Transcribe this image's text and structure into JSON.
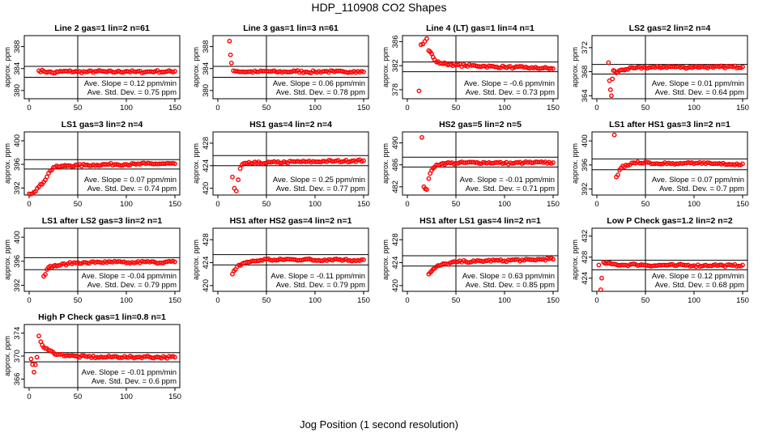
{
  "page": {
    "title": "HDP_110908  CO2 Shapes",
    "xlabel": "Jog Position (1 second resolution)"
  },
  "chart_data": [
    {
      "type": "scatter",
      "title": "Line 2 gas=1 lin=2 n=61",
      "ylabel": "approx. ppm",
      "xlim": [
        -5,
        155
      ],
      "ylim": [
        378.5,
        390
      ],
      "xticks": [
        0,
        50,
        100,
        150
      ],
      "yticks": [
        380,
        384,
        388
      ],
      "hlines": [
        384.4,
        382.4
      ],
      "vline": 50,
      "series": [
        {
          "name": "",
          "x": [
            10,
            15,
            20,
            25,
            30,
            40,
            50,
            60,
            70,
            80,
            90,
            100,
            110,
            120,
            130,
            140,
            150
          ],
          "y": [
            383.6,
            383.5,
            383.4,
            383.2,
            383.4,
            383.5,
            383.4,
            383.4,
            383.5,
            383.4,
            383.4,
            383.5,
            383.4,
            383.4,
            383.5,
            383.4,
            383.5
          ]
        }
      ],
      "annotations": [
        "Ave. Slope =  0.12  ppm/min",
        "Ave. Std. Dev. =  0.75  ppm"
      ]
    },
    {
      "type": "scatter",
      "title": "Line 3 gas=1 lin=3 n=61",
      "ylabel": "approx. ppm",
      "xlim": [
        -5,
        155
      ],
      "ylim": [
        378.5,
        390
      ],
      "xticks": [
        0,
        50,
        100,
        150
      ],
      "yticks": [
        380,
        384,
        388
      ],
      "hlines": [
        384.4,
        382.4
      ],
      "vline": 50,
      "series": [
        {
          "name": "",
          "x": [
            12,
            13,
            14,
            16,
            20,
            30,
            40,
            50,
            60,
            70,
            80,
            90,
            100,
            110,
            120,
            130,
            140,
            150
          ],
          "y": [
            389,
            386.5,
            385,
            383.6,
            383.5,
            383.4,
            383.4,
            383.5,
            383.4,
            383.4,
            383.5,
            383.4,
            383.4,
            383.5,
            383.4,
            383.4,
            383.5,
            383.4
          ]
        }
      ],
      "annotations": [
        "Ave. Slope =  0.06  ppm/min",
        "Ave. Std. Dev. =  0.78  ppm"
      ]
    },
    {
      "type": "scatter",
      "title": "Line 4 (LT) gas=1 lin=4 n=1",
      "ylabel": "approx. ppm",
      "xlim": [
        -5,
        155
      ],
      "ylim": [
        376.5,
        387
      ],
      "xticks": [
        0,
        50,
        100,
        150
      ],
      "yticks": [
        378,
        382,
        386
      ],
      "hlines": [
        382.6,
        381
      ],
      "vline": 50,
      "series": [
        {
          "name": "",
          "x": [
            12,
            14,
            16,
            20,
            22,
            25,
            28,
            30,
            35,
            40,
            45,
            50,
            60,
            70,
            80,
            90,
            100,
            110,
            120,
            130,
            140,
            150
          ],
          "y": [
            377.8,
            385.5,
            385.6,
            386.5,
            384.5,
            384,
            383,
            382.6,
            382.4,
            382.3,
            382.2,
            382.1,
            382.0,
            382.0,
            381.9,
            381.8,
            381.8,
            381.7,
            381.7,
            381.6,
            381.6,
            381.5
          ]
        }
      ],
      "annotations": [
        "Ave. Slope =  -0.6  ppm/min",
        "Ave. Std. Dev. =  0.73  ppm"
      ]
    },
    {
      "type": "scatter",
      "title": "LS2 gas=2 lin=2 n=4",
      "ylabel": "approx. ppm",
      "xlim": [
        -5,
        155
      ],
      "ylim": [
        363.5,
        374
      ],
      "xticks": [
        0,
        50,
        100,
        150
      ],
      "yticks": [
        364,
        368,
        372
      ],
      "hlines": [
        369.2,
        367.6
      ],
      "vline": 50,
      "series": [
        {
          "name": "",
          "x": [
            12,
            13,
            14,
            15,
            16,
            17,
            20,
            25,
            30,
            40,
            50,
            60,
            70,
            80,
            90,
            100,
            110,
            120,
            130,
            140,
            150
          ],
          "y": [
            369.5,
            366.5,
            365,
            364,
            366.8,
            368.2,
            367.8,
            368.3,
            368.4,
            368.6,
            368.7,
            368.7,
            368.8,
            368.8,
            368.7,
            368.8,
            368.8,
            368.7,
            368.8,
            368.8,
            368.8
          ]
        }
      ],
      "annotations": [
        "Ave. Slope =  0.01  ppm/min",
        "Ave. Std. Dev. =  0.64  ppm"
      ]
    },
    {
      "type": "scatter",
      "title": "LS1 gas=3 lin=2 n=4",
      "ylabel": "approx. ppm",
      "xlim": [
        -5,
        155
      ],
      "ylim": [
        390.8,
        401.5
      ],
      "xticks": [
        0,
        50,
        100,
        150
      ],
      "yticks": [
        392,
        396,
        400
      ],
      "hlines": [
        396.8,
        395.2
      ],
      "vline": 50,
      "series": [
        {
          "name": "",
          "x": [
            0,
            5,
            10,
            15,
            20,
            25,
            30,
            35,
            40,
            50,
            60,
            70,
            80,
            90,
            100,
            110,
            120,
            130,
            140,
            150
          ],
          "y": [
            391,
            391.3,
            392.2,
            393,
            394.5,
            395.5,
            395.6,
            395.7,
            395.8,
            395.8,
            395.9,
            395.9,
            396,
            396,
            396,
            396,
            396.1,
            396.1,
            396.1,
            396.1
          ]
        }
      ],
      "annotations": [
        "Ave. Slope =  0.07  ppm/min",
        "Ave. Std. Dev. =  0.74  ppm"
      ]
    },
    {
      "type": "scatter",
      "title": "HS1 gas=4 lin=2 n=4",
      "ylabel": "approx. ppm",
      "xlim": [
        -5,
        155
      ],
      "ylim": [
        418.8,
        430
      ],
      "xticks": [
        0,
        50,
        100,
        150
      ],
      "yticks": [
        420,
        424,
        428
      ],
      "hlines": [
        425.8,
        424
      ],
      "vline": 50,
      "series": [
        {
          "name": "",
          "x": [
            15,
            17,
            19,
            21,
            23,
            25,
            30,
            40,
            50,
            60,
            70,
            80,
            90,
            100,
            110,
            120,
            130,
            140,
            150
          ],
          "y": [
            422,
            420,
            419.5,
            421.5,
            423.5,
            424.2,
            424.4,
            424.5,
            424.5,
            424.6,
            424.6,
            424.7,
            424.7,
            424.7,
            424.8,
            424.8,
            424.8,
            424.9,
            424.9
          ]
        }
      ],
      "annotations": [
        "Ave. Slope =  0.25  ppm/min",
        "Ave. Std. Dev. =  0.77  ppm"
      ]
    },
    {
      "type": "scatter",
      "title": "HS2 gas=5 lin=2 n=5",
      "ylabel": "approx. ppm",
      "xlim": [
        -5,
        155
      ],
      "ylim": [
        480.5,
        492
      ],
      "xticks": [
        0,
        50,
        100,
        150
      ],
      "yticks": [
        482,
        486,
        490
      ],
      "hlines": [
        487.4,
        485.6
      ],
      "vline": 50,
      "series": [
        {
          "name": "",
          "x": [
            15,
            17,
            20,
            22,
            25,
            28,
            30,
            35,
            40,
            50,
            60,
            70,
            80,
            90,
            100,
            110,
            120,
            130,
            140,
            150
          ],
          "y": [
            491,
            482,
            481.5,
            483.5,
            485,
            485.6,
            486,
            486.2,
            486.3,
            486.3,
            486.4,
            486.4,
            486.4,
            486.4,
            486.3,
            486.3,
            486.4,
            486.4,
            486.4,
            486.4
          ]
        }
      ],
      "annotations": [
        "Ave. Slope =  -0.01  ppm/min",
        "Ave. Std. Dev. =  0.71  ppm"
      ]
    },
    {
      "type": "scatter",
      "title": "LS1 after HS1 gas=3 lin=2 n=1",
      "ylabel": "approx. ppm",
      "xlim": [
        -5,
        155
      ],
      "ylim": [
        391,
        401.5
      ],
      "xticks": [
        0,
        50,
        100,
        150
      ],
      "yticks": [
        392,
        396,
        400
      ],
      "hlines": [
        397,
        395.2
      ],
      "vline": 50,
      "series": [
        {
          "name": "",
          "x": [
            18,
            20,
            25,
            30,
            40,
            50,
            60,
            70,
            80,
            90,
            100,
            110,
            120,
            130,
            140,
            150
          ],
          "y": [
            401,
            394,
            395.5,
            396,
            396.3,
            396.5,
            396.2,
            396.4,
            396.1,
            396.3,
            396.2,
            396.4,
            396.2,
            396.3,
            396.1,
            396.2
          ]
        }
      ],
      "annotations": [
        "Ave. Slope =  0.07  ppm/min",
        "Ave. Std. Dev. =  0.7  ppm"
      ]
    },
    {
      "type": "scatter",
      "title": "LS1 after LS2 gas=3 lin=2 n=1",
      "ylabel": "approx. ppm",
      "xlim": [
        -5,
        155
      ],
      "ylim": [
        391,
        401.5
      ],
      "xticks": [
        0,
        50,
        100,
        150
      ],
      "yticks": [
        392,
        396,
        400
      ],
      "hlines": [
        396.6,
        394.6
      ],
      "vline": 50,
      "series": [
        {
          "name": "",
          "x": [
            15,
            20,
            25,
            30,
            40,
            50,
            60,
            70,
            80,
            90,
            100,
            110,
            120,
            130,
            140,
            150
          ],
          "y": [
            393.5,
            395,
            395.2,
            395.3,
            395.6,
            395.8,
            395.7,
            395.9,
            395.8,
            395.9,
            395.7,
            395.8,
            395.9,
            395.8,
            395.9,
            395.9
          ]
        }
      ],
      "annotations": [
        "Ave. Slope =  -0.04  ppm/min",
        "Ave. Std. Dev. =  0.79  ppm"
      ]
    },
    {
      "type": "scatter",
      "title": "HS1 after HS2 gas=4 lin=2 n=1",
      "ylabel": "approx. ppm",
      "xlim": [
        -5,
        155
      ],
      "ylim": [
        419,
        430
      ],
      "xticks": [
        0,
        50,
        100,
        150
      ],
      "yticks": [
        420,
        424,
        428
      ],
      "hlines": [
        425.4,
        423.6
      ],
      "vline": 50,
      "series": [
        {
          "name": "",
          "x": [
            15,
            18,
            20,
            25,
            30,
            40,
            50,
            60,
            70,
            80,
            90,
            100,
            110,
            120,
            130,
            140,
            150
          ],
          "y": [
            422,
            422.8,
            423.3,
            423.8,
            424.1,
            424.3,
            424.6,
            424.4,
            424.6,
            424.5,
            424.6,
            424.4,
            424.5,
            424.6,
            424.5,
            424.4,
            424.5
          ]
        }
      ],
      "annotations": [
        "Ave. Slope =  -0.11  ppm/min",
        "Ave. Std. Dev. =  0.79  ppm"
      ]
    },
    {
      "type": "scatter",
      "title": "HS1 after LS1 gas=4 lin=2 n=1",
      "ylabel": "approx. ppm",
      "xlim": [
        -5,
        155
      ],
      "ylim": [
        419,
        430
      ],
      "xticks": [
        0,
        50,
        100,
        150
      ],
      "yticks": [
        420,
        424,
        428
      ],
      "hlines": [
        425.2,
        423.4
      ],
      "vline": 50,
      "series": [
        {
          "name": "",
          "x": [
            22,
            25,
            28,
            30,
            35,
            40,
            50,
            60,
            70,
            80,
            90,
            100,
            110,
            120,
            130,
            140,
            150
          ],
          "y": [
            422,
            422.5,
            423,
            423.3,
            423.6,
            423.8,
            424.1,
            424.2,
            424.2,
            424.3,
            424.4,
            424.3,
            424.5,
            424.4,
            424.5,
            424.6,
            424.6
          ]
        }
      ],
      "annotations": [
        "Ave. Slope =  0.63  ppm/min",
        "Ave. Std. Dev. =  0.85  ppm"
      ]
    },
    {
      "type": "scatter",
      "title": "Low P Check gas=1.2 lin=2 n=2",
      "ylabel": "approx. ppm",
      "xlim": [
        -5,
        155
      ],
      "ylim": [
        421.5,
        433.5
      ],
      "xticks": [
        0,
        50,
        100,
        150
      ],
      "yticks": [
        424,
        428,
        432
      ],
      "hlines": [
        427.4,
        425.6
      ],
      "vline": 50,
      "series": [
        {
          "name": "",
          "x": [
            2,
            4,
            5,
            7,
            10,
            15,
            20,
            30,
            40,
            50,
            60,
            70,
            80,
            90,
            100,
            110,
            120,
            130,
            140,
            150
          ],
          "y": [
            426.5,
            421.8,
            424,
            427,
            426.8,
            426.7,
            426.6,
            426.5,
            426.6,
            426.5,
            426.4,
            426.5,
            426.4,
            426.5,
            426.4,
            426.4,
            426.5,
            426.4,
            426.4,
            426.5
          ]
        }
      ],
      "annotations": [
        "Ave. Slope =  0.12  ppm/min",
        "Ave. Std. Dev. =  0.68  ppm"
      ]
    },
    {
      "type": "scatter",
      "title": "High P Check gas=1 lin=0.8 n=1",
      "ylabel": "approx. ppm",
      "xlim": [
        -5,
        155
      ],
      "ylim": [
        364.5,
        375.5
      ],
      "xticks": [
        0,
        50,
        100,
        150
      ],
      "yticks": [
        366,
        370,
        374
      ],
      "hlines": [
        370.6,
        369
      ],
      "vline": 50,
      "series": [
        {
          "name": "",
          "x": [
            2,
            5,
            8,
            10,
            12,
            15,
            20,
            25,
            30,
            40,
            50,
            60,
            70,
            80,
            90,
            100,
            110,
            120,
            130,
            140,
            150
          ],
          "y": [
            369.5,
            367.2,
            369.8,
            373.5,
            372.5,
            371.5,
            371,
            370.6,
            370.3,
            370.1,
            369.9,
            369.9,
            369.8,
            369.8,
            369.9,
            369.8,
            369.8,
            369.9,
            369.8,
            369.8,
            369.8
          ]
        }
      ],
      "annotations": [
        "Ave. Slope =  -0.01  ppm/min",
        "Ave. Std. Dev. =  0.6  ppm"
      ]
    }
  ],
  "style": {
    "point_color": "#ff0000",
    "axis_color": "#000000"
  }
}
